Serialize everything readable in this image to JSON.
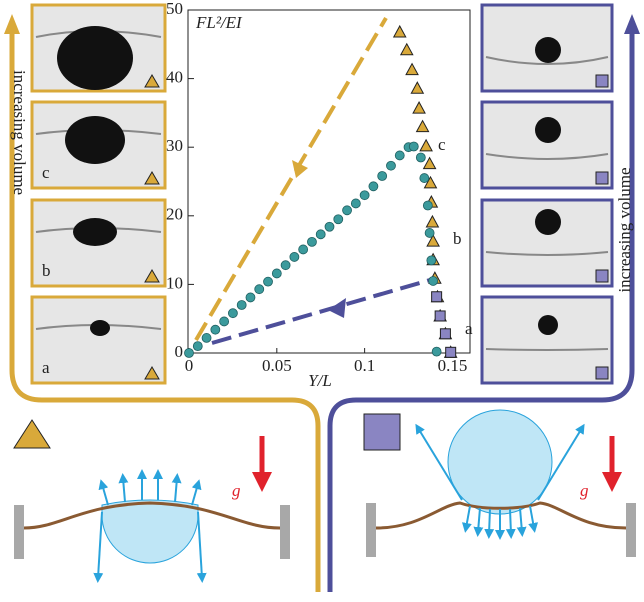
{
  "chart_data": {
    "type": "scatter",
    "title": "FL²/EI",
    "x_label": "Y/L",
    "xlim": [
      0,
      0.16
    ],
    "ylim": [
      0,
      50
    ],
    "xticks": [
      0,
      0.05,
      0.1,
      0.15
    ],
    "yticks": [
      0,
      10,
      20,
      30,
      40,
      50
    ],
    "annotations": [
      "c",
      "b",
      "a"
    ],
    "series": [
      {
        "name": "triangle",
        "color": "#d9a93a",
        "marker": "triangle",
        "x": [
          0.12,
          0.124,
          0.127,
          0.13,
          0.131,
          0.133,
          0.135,
          0.137,
          0.1375,
          0.138,
          0.1386,
          0.139,
          0.139,
          0.14,
          0.1415,
          0.143,
          0.146,
          0.149
        ],
        "values": [
          46.8,
          44.2,
          41.3,
          38.6,
          35.7,
          33,
          30.2,
          27.6,
          24.8,
          22,
          19.1,
          16.3,
          13.6,
          10.9,
          8.2,
          5.4,
          2.8,
          0.1
        ]
      },
      {
        "name": "circle",
        "color": "#3b9a9c",
        "marker": "circle",
        "x": [
          0,
          0.005,
          0.01,
          0.015,
          0.02,
          0.025,
          0.03,
          0.035,
          0.04,
          0.045,
          0.05,
          0.055,
          0.06,
          0.065,
          0.07,
          0.075,
          0.08,
          0.085,
          0.09,
          0.095,
          0.1,
          0.105,
          0.11,
          0.115,
          0.12,
          0.125,
          0.128,
          0.132,
          0.134,
          0.136,
          0.137,
          0.138,
          0.139,
          0.141
        ],
        "values": [
          0,
          1,
          2.2,
          3.4,
          4.6,
          5.8,
          7,
          8.1,
          9.3,
          10.4,
          11.6,
          12.8,
          14,
          15.1,
          16.2,
          17.3,
          18.4,
          19.5,
          20.8,
          21.8,
          23,
          24.3,
          25.8,
          27.3,
          28.8,
          30,
          30.1,
          28.5,
          25.5,
          21.5,
          17.5,
          13.5,
          10.5,
          0.2
        ]
      },
      {
        "name": "square",
        "color": "#8a85c2",
        "marker": "square",
        "x": [
          0.141,
          0.143,
          0.146,
          0.149
        ],
        "values": [
          8.2,
          5.4,
          2.8,
          0.1
        ]
      }
    ]
  },
  "labels": {
    "left_axis": "increasing volume",
    "right_axis": "increasing volume",
    "left_panels": [
      "c",
      "b",
      "a"
    ],
    "gravity_left": "g",
    "gravity_right": "g"
  }
}
